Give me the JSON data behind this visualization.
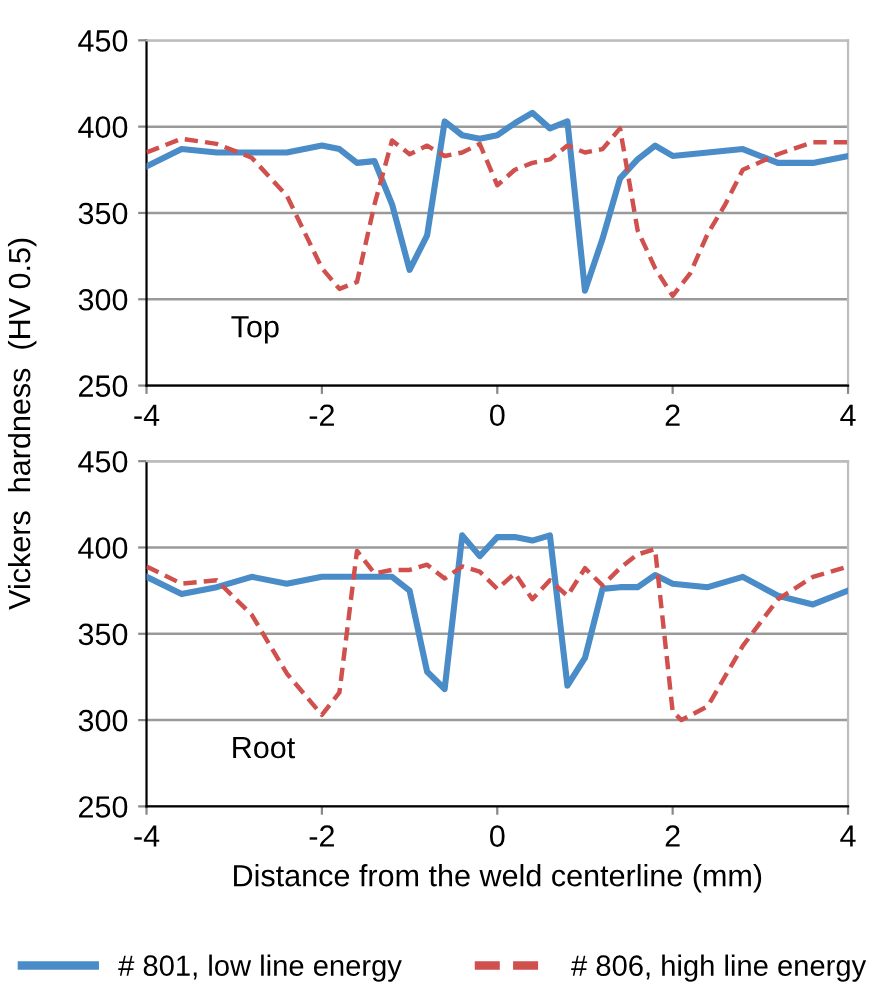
{
  "chart_data": [
    {
      "type": "line",
      "ylabel": "Vickers  hardness  (HV 0.5)",
      "xlim": [
        -4,
        4
      ],
      "xticks": [
        -4,
        -2,
        0,
        2,
        4
      ],
      "ylim": [
        250,
        450
      ],
      "yticks": [
        250,
        300,
        350,
        400,
        450
      ],
      "grid": "y",
      "legend": false,
      "annotations": [
        "Top"
      ],
      "series": [
        {
          "color": "#4a8cc8",
          "line_style": "solid",
          "x": [
            -4,
            -3.6,
            -3.2,
            -2.8,
            -2.4,
            -2,
            -1.8,
            -1.6,
            -1.4,
            -1.2,
            -1,
            -0.8,
            -0.6,
            -0.4,
            -0.2,
            0,
            0.2,
            0.4,
            0.6,
            0.8,
            1.0,
            1.2,
            1.4,
            1.6,
            1.8,
            2,
            2.4,
            2.8,
            3.2,
            3.6,
            4
          ],
          "values": [
            377,
            387,
            385,
            385,
            385,
            389,
            387,
            379,
            380,
            355,
            317,
            337,
            403,
            395,
            393,
            395,
            402,
            408,
            399,
            403,
            305,
            335,
            370,
            381,
            389,
            383,
            385,
            387,
            379,
            379,
            383
          ]
        },
        {
          "color": "#d0504d",
          "line_style": "dashed",
          "x": [
            -4,
            -3.6,
            -3.2,
            -2.8,
            -2.4,
            -2,
            -1.8,
            -1.6,
            -1.4,
            -1.2,
            -1,
            -0.8,
            -0.6,
            -0.4,
            -0.2,
            0,
            0.2,
            0.4,
            0.6,
            0.8,
            1.0,
            1.2,
            1.4,
            1.6,
            1.8,
            2,
            2.2,
            2.4,
            2.6,
            2.8,
            3.2,
            3.6,
            4
          ],
          "values": [
            385,
            393,
            390,
            382,
            360,
            318,
            306,
            310,
            355,
            392,
            384,
            389,
            383,
            385,
            390,
            366,
            375,
            379,
            381,
            389,
            385,
            387,
            399,
            340,
            318,
            302,
            315,
            338,
            355,
            375,
            384,
            391,
            391
          ]
        }
      ]
    },
    {
      "type": "line",
      "xlabel": "Distance from the weld centerline (mm)",
      "xlim": [
        -4,
        4
      ],
      "xticks": [
        -4,
        -2,
        0,
        2,
        4
      ],
      "ylim": [
        250,
        450
      ],
      "yticks": [
        250,
        300,
        350,
        400,
        450
      ],
      "grid": "y",
      "legend": "bottom",
      "annotations": [
        "Root"
      ],
      "series": [
        {
          "name": "# 801, low line energy",
          "color": "#4a8cc8",
          "line_style": "solid",
          "x": [
            -4,
            -3.6,
            -3.2,
            -2.8,
            -2.4,
            -2,
            -1.6,
            -1.2,
            -1,
            -0.8,
            -0.6,
            -0.4,
            -0.2,
            0,
            0.2,
            0.4,
            0.6,
            0.8,
            1.0,
            1.2,
            1.4,
            1.6,
            1.8,
            2,
            2.4,
            2.8,
            3.2,
            3.6,
            4
          ],
          "values": [
            383,
            373,
            377,
            383,
            379,
            383,
            383,
            383,
            375,
            328,
            318,
            407,
            395,
            406,
            406,
            404,
            407,
            320,
            336,
            376,
            377,
            377,
            384,
            379,
            377,
            383,
            372,
            367,
            375
          ]
        },
        {
          "name": "# 806, high line energy",
          "color": "#d0504d",
          "line_style": "dashed",
          "x": [
            -4,
            -3.6,
            -3.2,
            -2.8,
            -2.4,
            -2,
            -1.8,
            -1.6,
            -1.4,
            -1.2,
            -1,
            -0.8,
            -0.6,
            -0.4,
            -0.2,
            0,
            0.2,
            0.4,
            0.6,
            0.8,
            1.0,
            1.2,
            1.4,
            1.6,
            1.8,
            2,
            2.1,
            2.4,
            2.8,
            3.2,
            3.6,
            4
          ],
          "values": [
            389,
            379,
            381,
            361,
            327,
            303,
            316,
            398,
            385,
            387,
            387,
            390,
            382,
            389,
            386,
            376,
            385,
            370,
            381,
            372,
            388,
            378,
            388,
            396,
            399,
            305,
            300,
            308,
            343,
            370,
            383,
            389
          ]
        }
      ]
    }
  ]
}
